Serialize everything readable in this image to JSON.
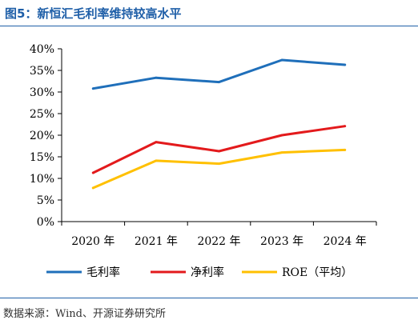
{
  "figure": {
    "title": "图5：新恒汇毛利率维持较高水平",
    "source": "数据来源：Wind、开源证券研究所"
  },
  "chart_data": {
    "type": "line",
    "categories": [
      "2020 年",
      "2021 年",
      "2022 年",
      "2023 年",
      "2024 年"
    ],
    "yticks": [
      "0%",
      "5%",
      "10%",
      "15%",
      "20%",
      "25%",
      "30%",
      "35%",
      "40%"
    ],
    "ylim": [
      0,
      40
    ],
    "grid": false,
    "legend_position": "bottom",
    "series": [
      {
        "name": "毛利率",
        "color": "#1f6fba",
        "values": [
          30.8,
          33.3,
          32.3,
          37.4,
          36.3
        ]
      },
      {
        "name": "净利率",
        "color": "#e31a1c",
        "values": [
          11.3,
          18.4,
          16.3,
          20.0,
          22.1
        ]
      },
      {
        "name": "ROE（平均）",
        "color": "#ffc000",
        "values": [
          7.8,
          14.1,
          13.4,
          16.0,
          16.6
        ]
      }
    ]
  }
}
